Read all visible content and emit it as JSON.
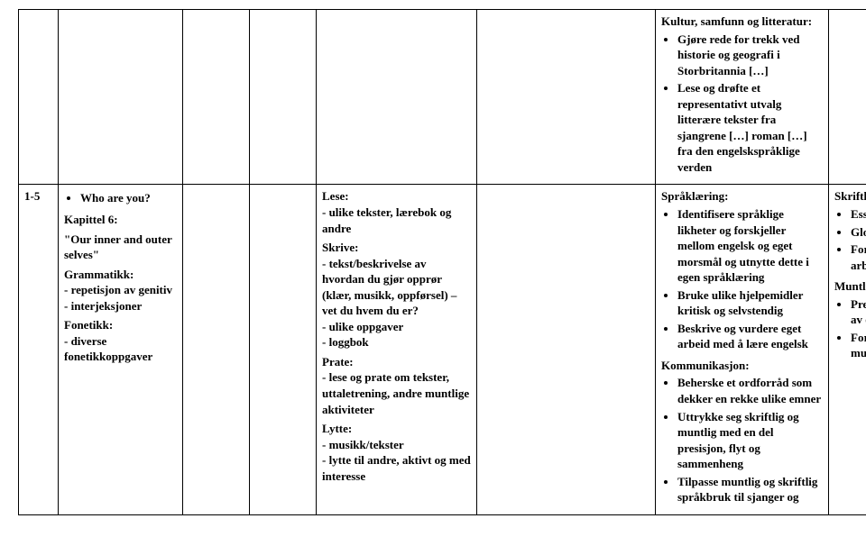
{
  "row1": {
    "col7": {
      "heading": "Kultur, samfunn og litteratur:",
      "bullets": [
        "Gjøre rede for trekk ved historie og geografi i Storbritannia […]",
        "Lese og drøfte et representativt utvalg litterære tekster fra sjangrene […] roman […] fra den engelskspråklige verden"
      ]
    }
  },
  "row2": {
    "col1": "1-5",
    "col2": {
      "bullets_top": [
        "Who are you?"
      ],
      "p1": "Kapittel 6:",
      "p2": "\"Our inner and outer selves\"",
      "p3": "Grammatikk:",
      "p4": "- repetisjon av genitiv",
      "p5": "- interjeksjoner",
      "p6": "Fonetikk:",
      "p7": "- diverse fonetikkoppgaver"
    },
    "col5": {
      "s1h": "Lese:",
      "s1t": "- ulike tekster, lærebok og andre",
      "s2h": "Skrive:",
      "s2t1": "- tekst/beskrivelse av hvordan du gjør opprør (klær, musikk, oppførsel) – vet du hvem du er?",
      "s2t2": "- ulike oppgaver",
      "s2t3": "- loggbok",
      "s3h": "Prate:",
      "s3t": "- lese og prate om tekster, uttaletrening, andre muntlige aktiviteter",
      "s4h": "Lytte:",
      "s4t1": "- musikk/tekster",
      "s4t2": "- lytte til andre, aktivt og med interesse"
    },
    "col7": {
      "s1h": "Språklæring:",
      "s1b": [
        "Identifisere språklige likheter og forskjeller mellom engelsk og eget morsmål og utnytte dette i egen språklæring",
        "Bruke ulike hjelpemidler kritisk og selvstendig",
        "Beskrive og vurdere eget arbeid med å lære engelsk"
      ],
      "s2h": "Kommunikasjon:",
      "s2b": [
        "Beherske et ordforråd som dekker en rekke ulike emner",
        "Uttrykke seg skriftlig og muntlig med en del presisjon, flyt og sammenheng",
        "Tilpasse muntlig og skriftlig språkbruk til sjanger og"
      ]
    },
    "col8": {
      "s1h": "Skriftlig",
      "s1b": [
        "Essay/kåseri om opprør",
        "Gloseprøve",
        "Fortløpende vurdering av arbeidsbøker"
      ],
      "s2h": "Muntlig",
      "s2b": [
        "Presentasjon (høytlesing) av essay/kåseri",
        "Fortløpende vurdering av muntlig aktivitet i timer"
      ]
    }
  }
}
